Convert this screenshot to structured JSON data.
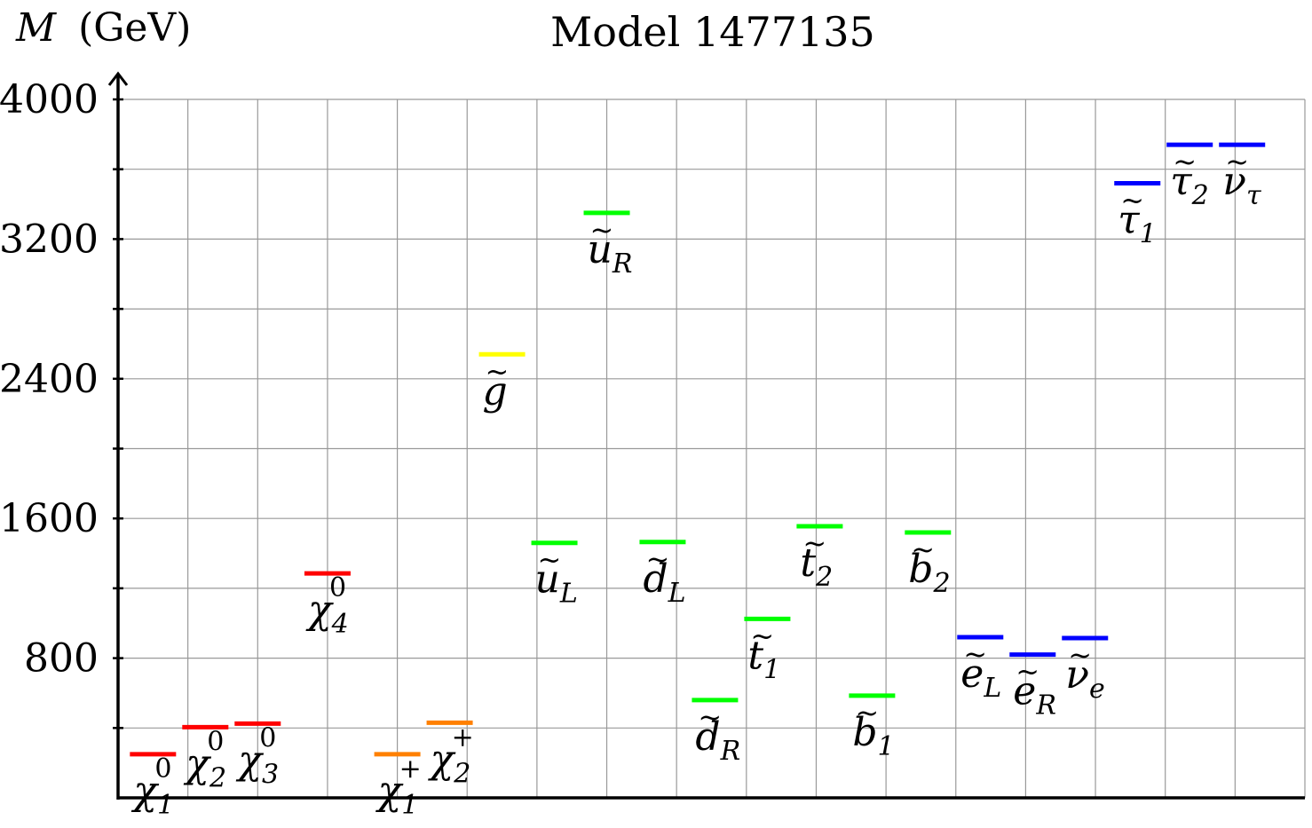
{
  "header": {
    "title": "Model 1477135",
    "y_axis_label": "M",
    "y_axis_unit": "(GeV)"
  },
  "chart_data": {
    "type": "spectrum",
    "title": "Model 1477135",
    "ylabel": "M (GeV)",
    "ylim": [
      0,
      4000
    ],
    "yticks": [
      0,
      800,
      1600,
      2400,
      3200,
      4000
    ],
    "ytick_labels": [
      "800",
      "1600",
      "2400",
      "3200",
      "4000"
    ],
    "grid": true,
    "columns": 17,
    "particles": [
      {
        "base": "χ",
        "sub": "1",
        "sup": "0",
        "tilde": false,
        "mass": 250,
        "color": "#ff0000",
        "col": 0.5
      },
      {
        "base": "χ",
        "sub": "2",
        "sup": "0",
        "tilde": false,
        "mass": 405,
        "color": "#ff0000",
        "col": 1.25
      },
      {
        "base": "χ",
        "sub": "3",
        "sup": "0",
        "tilde": false,
        "mass": 425,
        "color": "#ff0000",
        "col": 2.0
      },
      {
        "base": "χ",
        "sub": "4",
        "sup": "0",
        "tilde": false,
        "mass": 1285,
        "color": "#ff0000",
        "col": 3.0
      },
      {
        "base": "χ",
        "sub": "1",
        "sup": "+",
        "tilde": false,
        "mass": 250,
        "color": "#ff8000",
        "col": 4.0
      },
      {
        "base": "χ",
        "sub": "2",
        "sup": "+",
        "tilde": false,
        "mass": 430,
        "color": "#ff8000",
        "col": 4.75
      },
      {
        "base": "g",
        "sub": "",
        "sup": "",
        "tilde": true,
        "mass": 2540,
        "color": "#ffff00",
        "col": 5.5
      },
      {
        "base": "u",
        "sub": "L",
        "sup": "",
        "tilde": true,
        "mass": 1460,
        "color": "#00ff00",
        "col": 6.25
      },
      {
        "base": "u",
        "sub": "R",
        "sup": "",
        "tilde": true,
        "mass": 3350,
        "color": "#00ff00",
        "col": 7.0
      },
      {
        "base": "d",
        "sub": "L",
        "sup": "",
        "tilde": true,
        "mass": 1465,
        "color": "#00ff00",
        "col": 7.8
      },
      {
        "base": "d",
        "sub": "R",
        "sup": "",
        "tilde": true,
        "mass": 560,
        "color": "#00ff00",
        "col": 8.55
      },
      {
        "base": "t",
        "sub": "1",
        "sup": "",
        "tilde": true,
        "mass": 1025,
        "color": "#00ff00",
        "col": 9.3
      },
      {
        "base": "t",
        "sub": "2",
        "sup": "",
        "tilde": true,
        "mass": 1555,
        "color": "#00ff00",
        "col": 10.05
      },
      {
        "base": "b",
        "sub": "1",
        "sup": "",
        "tilde": true,
        "mass": 585,
        "color": "#00ff00",
        "col": 10.8
      },
      {
        "base": "b",
        "sub": "2",
        "sup": "",
        "tilde": true,
        "mass": 1520,
        "color": "#00ff00",
        "col": 11.6
      },
      {
        "base": "e",
        "sub": "L",
        "sup": "",
        "tilde": true,
        "mass": 920,
        "color": "#0000ff",
        "col": 12.35
      },
      {
        "base": "e",
        "sub": "R",
        "sup": "",
        "tilde": true,
        "mass": 820,
        "color": "#0000ff",
        "col": 13.1
      },
      {
        "base": "ν",
        "sub": "e",
        "sup": "",
        "tilde": true,
        "mass": 915,
        "color": "#0000ff",
        "col": 13.85
      },
      {
        "base": "τ",
        "sub": "1",
        "sup": "",
        "tilde": true,
        "mass": 3520,
        "color": "#0000ff",
        "col": 14.6
      },
      {
        "base": "τ",
        "sub": "2",
        "sup": "",
        "tilde": true,
        "mass": 3740,
        "color": "#0000ff",
        "col": 15.35
      },
      {
        "base": "ν",
        "sub": "τ",
        "sup": "",
        "tilde": true,
        "mass": 3740,
        "color": "#0000ff",
        "col": 16.1
      }
    ]
  }
}
